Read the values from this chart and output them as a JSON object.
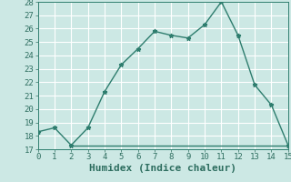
{
  "xlabel": "Humidex (Indice chaleur)",
  "line1_x": [
    0,
    1,
    2,
    3,
    4,
    5,
    6,
    7,
    8,
    9,
    10,
    11,
    12,
    13,
    14,
    15
  ],
  "line1_y": [
    18.3,
    18.6,
    17.3,
    18.6,
    21.3,
    23.3,
    24.5,
    25.8,
    25.5,
    25.3,
    26.3,
    28.0,
    25.5,
    21.8,
    20.3,
    17.3
  ],
  "line2_x": [
    2,
    11,
    15
  ],
  "line2_y": [
    17.3,
    17.3,
    17.3
  ],
  "line_color": "#2e7d6e",
  "bg_color": "#cce8e4",
  "grid_color": "#b0d8d2",
  "xlim": [
    0,
    15
  ],
  "ylim": [
    17,
    28
  ],
  "yticks": [
    17,
    18,
    19,
    20,
    21,
    22,
    23,
    24,
    25,
    26,
    27,
    28
  ],
  "xticks": [
    0,
    1,
    2,
    3,
    4,
    5,
    6,
    7,
    8,
    9,
    10,
    11,
    12,
    13,
    14,
    15
  ],
  "marker": "*",
  "linewidth": 1.0,
  "markersize": 3.5,
  "font_color": "#2e6e60",
  "xlabel_fontsize": 8,
  "tick_fontsize": 6.5
}
